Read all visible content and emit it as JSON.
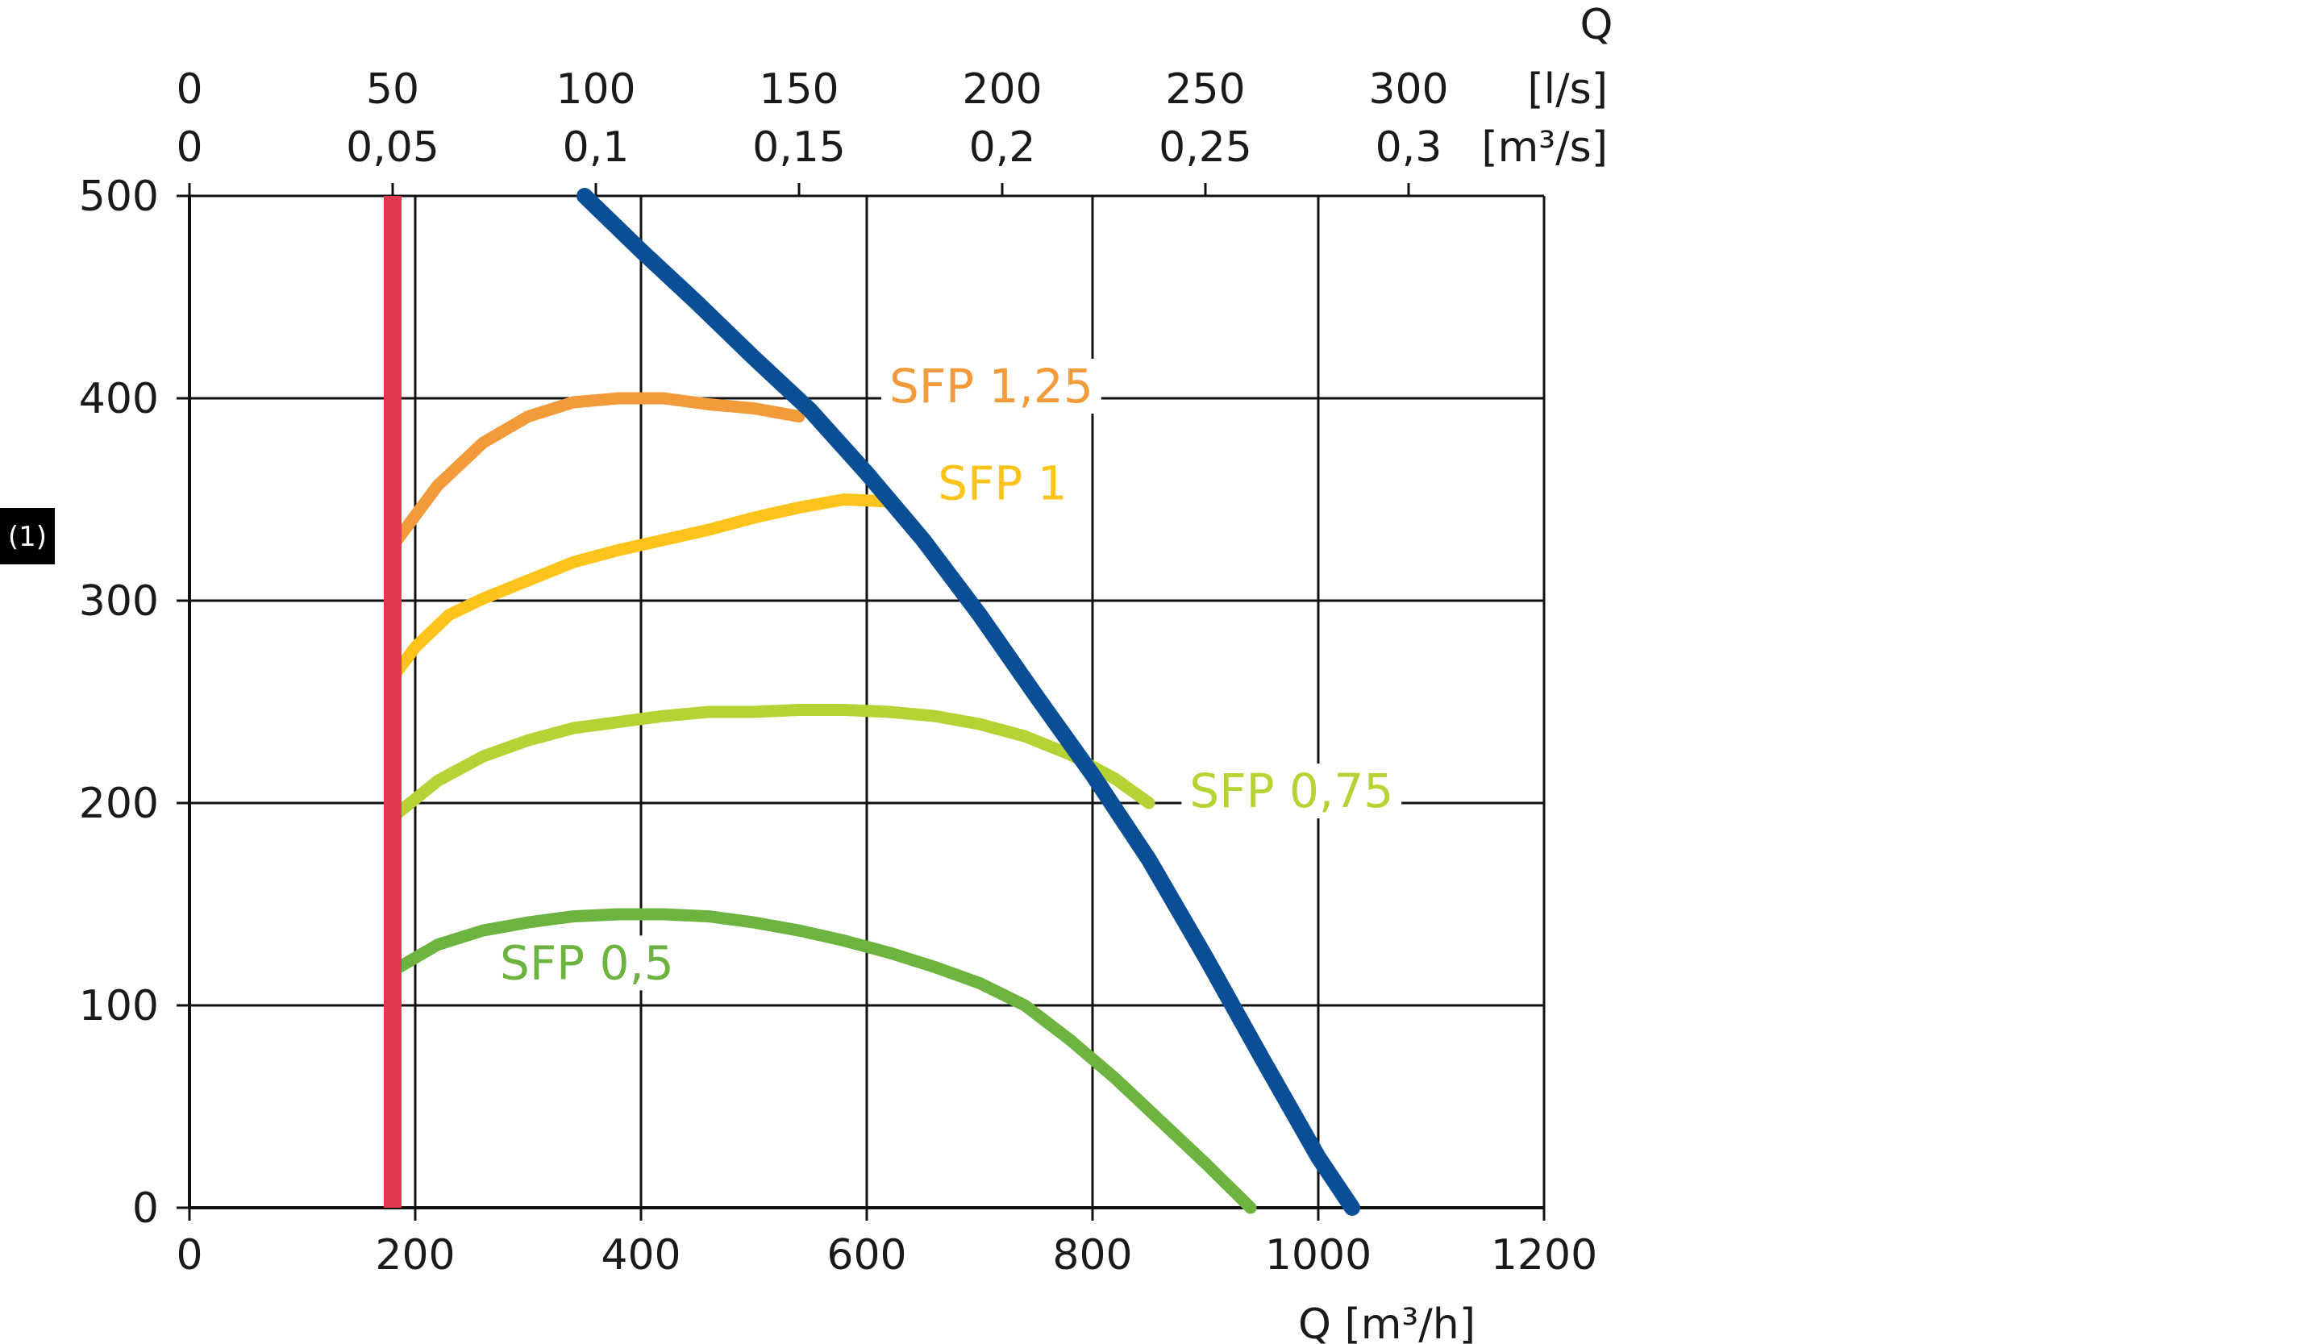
{
  "chart_data": {
    "type": "line",
    "xlabel": "Q [m³/h]",
    "ylabel": "(1)",
    "xlim": [
      0,
      1200
    ],
    "ylim": [
      0,
      500
    ],
    "grid": true,
    "x_ticks": [
      "0",
      "200",
      "400",
      "600",
      "800",
      "1000",
      "1200"
    ],
    "y_ticks": [
      "0",
      "100",
      "200",
      "300",
      "400",
      "500"
    ],
    "top_axis": {
      "title": "Q",
      "ls_label": "[l/s]",
      "m3s_label": "[m³/s]",
      "ls_ticks": [
        "0",
        "50",
        "100",
        "150",
        "200",
        "250",
        "300"
      ],
      "m3s_ticks": [
        "0",
        "0,05",
        "0,1",
        "0,15",
        "0,2",
        "0,25",
        "0,3"
      ],
      "m3s_tick_values": [
        0,
        0.05,
        0.1,
        0.15,
        0.2,
        0.25,
        0.3
      ]
    },
    "series": [
      {
        "name": "SFP 1,25",
        "color": "#f39a3a",
        "label_at": [
          620,
          398
        ],
        "points": [
          [
            180,
            327
          ],
          [
            220,
            357
          ],
          [
            260,
            378
          ],
          [
            300,
            391
          ],
          [
            340,
            398
          ],
          [
            380,
            400
          ],
          [
            420,
            400
          ],
          [
            460,
            397
          ],
          [
            500,
            395
          ],
          [
            540,
            391
          ]
        ]
      },
      {
        "name": "SFP 1",
        "color": "#fcc41a",
        "label_at": [
          663,
          350
        ],
        "points": [
          [
            180,
            262
          ],
          [
            200,
            277
          ],
          [
            230,
            293
          ],
          [
            260,
            301
          ],
          [
            300,
            310
          ],
          [
            340,
            319
          ],
          [
            380,
            325
          ],
          [
            420,
            330
          ],
          [
            460,
            335
          ],
          [
            500,
            341
          ],
          [
            540,
            346
          ],
          [
            580,
            350
          ],
          [
            620,
            349
          ]
        ]
      },
      {
        "name": "SFP 0,75",
        "color": "#b5d334",
        "label_at": [
          886,
          198
        ],
        "points": [
          [
            180,
            193
          ],
          [
            220,
            211
          ],
          [
            260,
            223
          ],
          [
            300,
            231
          ],
          [
            340,
            237
          ],
          [
            380,
            240
          ],
          [
            420,
            243
          ],
          [
            460,
            245
          ],
          [
            500,
            245
          ],
          [
            540,
            246
          ],
          [
            580,
            246
          ],
          [
            620,
            245
          ],
          [
            660,
            243
          ],
          [
            700,
            239
          ],
          [
            740,
            233
          ],
          [
            780,
            224
          ],
          [
            820,
            212
          ],
          [
            850,
            200
          ]
        ]
      },
      {
        "name": "SFP 0,5",
        "color": "#6db33f",
        "label_at": [
          275,
          113
        ],
        "points": [
          [
            180,
            117
          ],
          [
            220,
            130
          ],
          [
            260,
            137
          ],
          [
            300,
            141
          ],
          [
            340,
            144
          ],
          [
            380,
            145
          ],
          [
            420,
            145
          ],
          [
            460,
            144
          ],
          [
            500,
            141
          ],
          [
            540,
            137
          ],
          [
            580,
            132
          ],
          [
            620,
            126
          ],
          [
            660,
            119
          ],
          [
            700,
            111
          ],
          [
            740,
            100
          ],
          [
            780,
            83
          ],
          [
            820,
            64
          ],
          [
            860,
            43
          ],
          [
            900,
            22
          ],
          [
            940,
            0
          ]
        ]
      },
      {
        "name": "",
        "color": "#0a4f96",
        "points": [
          [
            350,
            500
          ],
          [
            400,
            473
          ],
          [
            450,
            447
          ],
          [
            500,
            420
          ],
          [
            550,
            394
          ],
          [
            600,
            363
          ],
          [
            650,
            330
          ],
          [
            700,
            293
          ],
          [
            750,
            253
          ],
          [
            800,
            214
          ],
          [
            850,
            172
          ],
          [
            900,
            124
          ],
          [
            950,
            74
          ],
          [
            1000,
            25
          ],
          [
            1030,
            0
          ]
        ]
      },
      {
        "name": "",
        "color": "#e0384f",
        "points": [
          [
            180,
            0
          ],
          [
            180,
            500
          ]
        ]
      }
    ]
  }
}
